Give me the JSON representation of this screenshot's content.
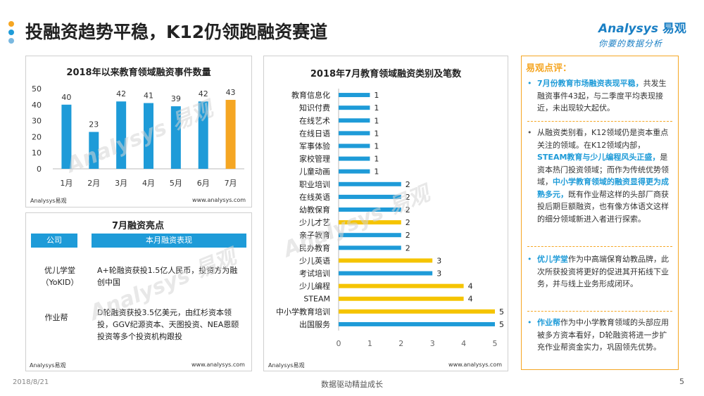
{
  "header": {
    "title": "投融资趋势平稳，K12仍领跑融资赛道",
    "logo_text": "Analysys",
    "logo_cn": "易观",
    "logo_slogan": "你要的数据分析",
    "dot_colors": [
      "#f5a623",
      "#1e9bd8",
      "#7ab8e0"
    ]
  },
  "colors": {
    "blue": "#1e9bd8",
    "orange": "#f5a623",
    "yellow": "#f5c400"
  },
  "chart_data": [
    {
      "type": "bar",
      "title": "2018年以来教育领域融资事件数量",
      "categories": [
        "1月",
        "2月",
        "3月",
        "4月",
        "5月",
        "6月",
        "7月"
      ],
      "values": [
        40,
        23,
        42,
        41,
        39,
        42,
        43
      ],
      "ylim": [
        0,
        50
      ],
      "yticks": [
        0,
        10,
        20,
        30,
        40,
        50
      ],
      "highlight_index": 6,
      "bar_color": "#1e9bd8",
      "highlight_color": "#f5a623",
      "grid": false,
      "source": "Analysys易观",
      "url": "www.analysys.com"
    },
    {
      "type": "bar",
      "orientation": "horizontal",
      "title": "2018年7月教育领域融资类别及笔数",
      "categories": [
        "教育信息化",
        "知识付费",
        "在线艺术",
        "在线日语",
        "军事体验",
        "家校管理",
        "儿童动画",
        "职业培训",
        "在线英语",
        "幼教保育",
        "少儿才艺",
        "亲子教育",
        "民办教育",
        "少儿英语",
        "考试培训",
        "少儿编程",
        "STEAM",
        "中小学教育培训",
        "出国服务"
      ],
      "values": [
        1,
        1,
        1,
        1,
        1,
        1,
        1,
        2,
        2,
        2,
        2,
        2,
        2,
        3,
        3,
        4,
        4,
        5,
        5
      ],
      "colors": [
        "#1e9bd8",
        "#1e9bd8",
        "#1e9bd8",
        "#1e9bd8",
        "#1e9bd8",
        "#1e9bd8",
        "#1e9bd8",
        "#1e9bd8",
        "#1e9bd8",
        "#1e9bd8",
        "#f5c400",
        "#1e9bd8",
        "#1e9bd8",
        "#f5c400",
        "#1e9bd8",
        "#f5c400",
        "#f5c400",
        "#f5c400",
        "#1e9bd8"
      ],
      "xlim": [
        0,
        5
      ],
      "xticks": [
        0,
        1,
        2,
        3,
        4,
        5
      ],
      "grid": false,
      "source": "Analysys易观",
      "url": "www.analysys.com"
    }
  ],
  "highlights": {
    "title": "7月融资亮点",
    "col_company": "公司",
    "col_performance": "本月融资表现",
    "rows": [
      {
        "company": "优儿学堂（YoKID）",
        "desc": "A+轮融资获投1.5亿人民币，投资方为融创中国"
      },
      {
        "company": "作业帮",
        "desc": "D轮融资获投3.5亿美元，由红杉资本领投，GGV纪源资本、天图投资、NEA恩颐投资等多个投资机构跟投"
      }
    ],
    "source": "Analysys易观",
    "url": "www.analysys.com"
  },
  "comment": {
    "heading": "易观点评：",
    "items": [
      {
        "hl": "7月份教育市场融资表现平稳，",
        "text": "共发生融资事件43起，与二季度平均表现接近，未出现较大起伏。"
      },
      {
        "text_a": "从融资类别看，K12领域仍是资本重点关注的领域。在K12领域内部，",
        "hl_a": "STEAM教育与少儿编程风头正盛，",
        "text_b": "是资本热门投资领域；而作为传统优势领域，",
        "hl_b": "中小学教育领域的融资显得更为成熟多元，",
        "text_c": "既有作业帮这样的头部厂商获投后期巨额融资，也有像方体语文这样的细分领域新进入者进行探索。"
      },
      {
        "hl": "优儿学堂",
        "text": "作为中高端保育幼教品牌，此次所获投资将更好的促进其开拓线下业务，并与线上业务形成闭环。"
      },
      {
        "hl": "作业帮",
        "text": "作为中小学教育领域的头部应用被多方资本看好，D轮融资将进一步扩充作业帮资金实力，巩固领先优势。"
      }
    ]
  },
  "footer": {
    "date": "2018/8/21",
    "slogan": "数据驱动精益成长",
    "page": "5"
  }
}
